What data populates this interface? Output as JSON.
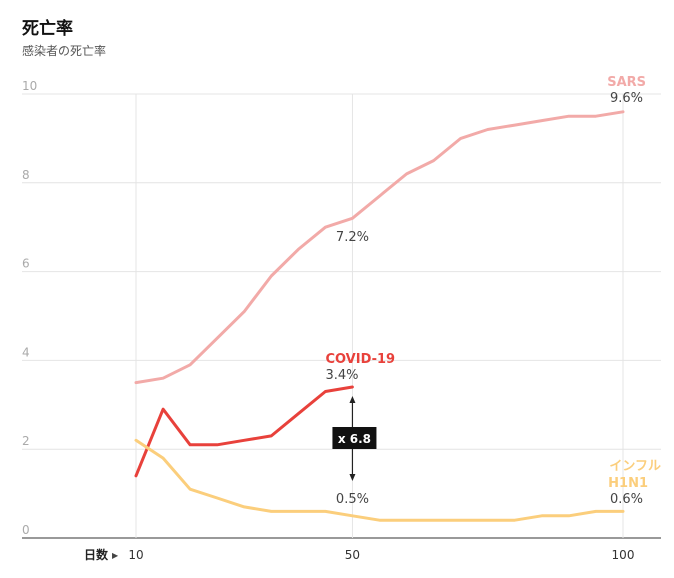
{
  "title": "死亡率",
  "subtitle": "感染者の死亡率",
  "chart_data": {
    "type": "line",
    "xlabel": "日数",
    "ylim": [
      0,
      10
    ],
    "yticks": [
      0,
      2,
      4,
      6,
      8,
      10
    ],
    "xticks": [
      10,
      50,
      100
    ],
    "xrange": [
      10,
      100
    ],
    "grid": true,
    "series": [
      {
        "name": "SARS",
        "color": "#f2aaa8",
        "x": [
          10,
          15,
          20,
          25,
          30,
          35,
          40,
          45,
          50,
          55,
          60,
          65,
          70,
          75,
          80,
          85,
          90,
          95,
          100
        ],
        "y": [
          3.5,
          3.6,
          3.9,
          4.5,
          5.1,
          5.9,
          6.5,
          7.0,
          7.2,
          7.7,
          8.2,
          8.5,
          9.0,
          9.2,
          9.3,
          9.4,
          9.5,
          9.5,
          9.6
        ],
        "end_label": "9.6%"
      },
      {
        "name": "COVID-19",
        "color": "#e8413b",
        "x": [
          10,
          15,
          20,
          25,
          30,
          35,
          40,
          45,
          50
        ],
        "y": [
          1.4,
          2.9,
          2.1,
          2.1,
          2.2,
          2.3,
          2.8,
          3.3,
          3.4
        ],
        "end_label": "3.4%"
      },
      {
        "name": "インフル\nH1N1",
        "color": "#fbce7c",
        "x": [
          10,
          15,
          20,
          25,
          30,
          35,
          40,
          45,
          50,
          55,
          60,
          65,
          70,
          75,
          80,
          85,
          90,
          95,
          100
        ],
        "y": [
          2.2,
          1.8,
          1.1,
          0.9,
          0.7,
          0.6,
          0.6,
          0.6,
          0.5,
          0.4,
          0.4,
          0.4,
          0.4,
          0.4,
          0.4,
          0.5,
          0.5,
          0.6,
          0.6
        ],
        "end_label": "0.6%"
      }
    ],
    "annotations": {
      "sars_day50": "7.2%",
      "h1n1_day50": "0.5%",
      "ratio": "x 6.8"
    }
  }
}
